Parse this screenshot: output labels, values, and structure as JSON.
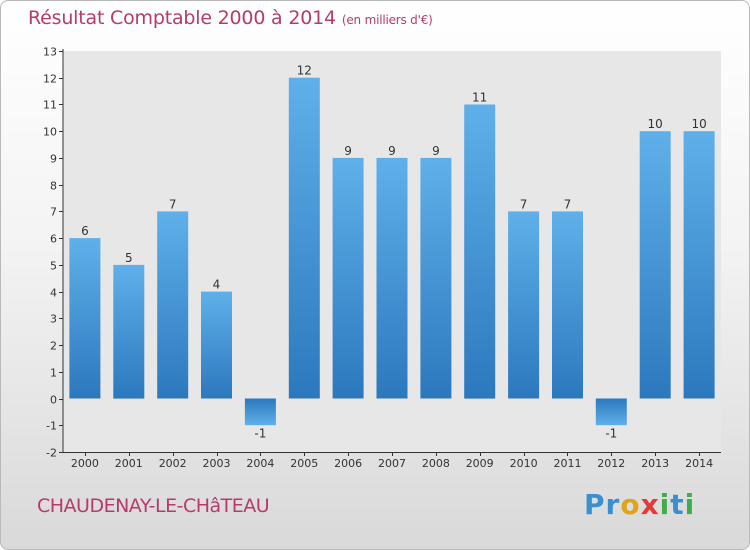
{
  "chart_data": {
    "type": "bar",
    "title": "Résultat Comptable 2000 à 2014",
    "subtitle": "(en milliers d'€)",
    "categories": [
      "2000",
      "2001",
      "2002",
      "2003",
      "2004",
      "2005",
      "2006",
      "2007",
      "2008",
      "2009",
      "2010",
      "2011",
      "2012",
      "2013",
      "2014"
    ],
    "values": [
      6,
      5,
      7,
      4,
      -1,
      12,
      9,
      9,
      9,
      11,
      7,
      7,
      -1,
      10,
      10
    ],
    "data_labels": [
      "6",
      "5",
      "7",
      "4",
      "-1",
      "12",
      "9",
      "9",
      "9",
      "11",
      "7",
      "7",
      "-1",
      "10",
      "10"
    ],
    "ylim": [
      -2,
      13
    ],
    "yticks": [
      -2,
      -1,
      0,
      1,
      2,
      3,
      4,
      5,
      6,
      7,
      8,
      9,
      10,
      11,
      12,
      13
    ],
    "ytick_labels": [
      "-2",
      "-1",
      "0",
      "1",
      "2",
      "3",
      "4",
      "5",
      "6",
      "7",
      "8",
      "9",
      "10",
      "11",
      "12",
      "13"
    ],
    "xlabel": "",
    "ylabel": "",
    "bar_color": "#3d8fd0",
    "title_color": "#b83a6c"
  },
  "footer": {
    "location": "CHAUDENAY-LE-CHâTEAU",
    "brand": "Proxiti",
    "brand_letters": [
      "P",
      "r",
      "o",
      "x",
      "i",
      "t",
      "i"
    ],
    "brand_colors": [
      "#3a8fd1",
      "#3a8fd1",
      "#e0a419",
      "#e03a3a",
      "#3fae49",
      "#3a8fd1",
      "#3fae49"
    ]
  }
}
